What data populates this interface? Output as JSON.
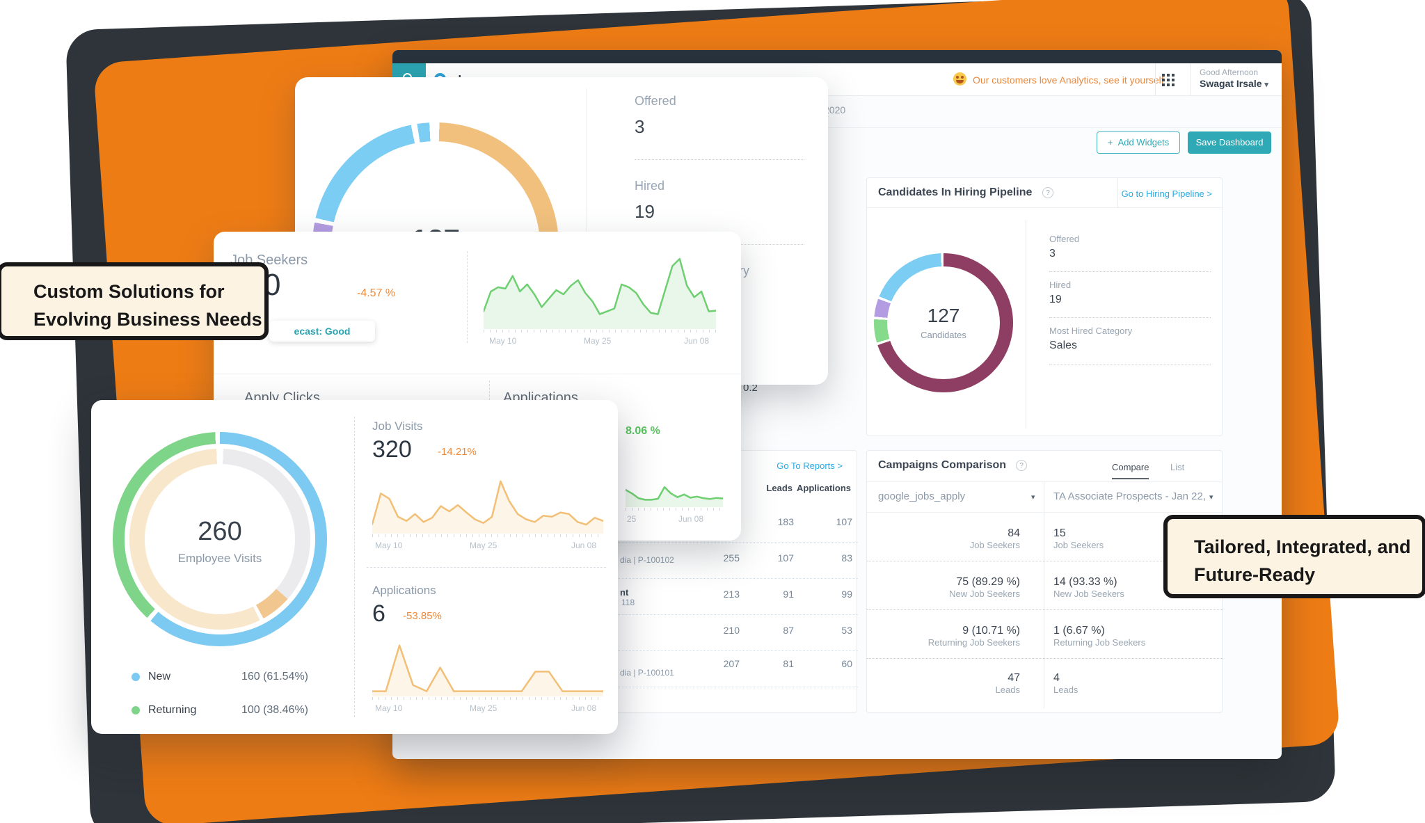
{
  "callouts": {
    "left_line1": "Custom Solutions for",
    "left_line2": "Evolving Business Needs",
    "right_line1": "Tailored, Integrated, and",
    "right_line2": "Future-Ready"
  },
  "colors": {
    "accent_orange": "#ee7c15",
    "teal": "#2fa9b6",
    "link_blue": "#2aa9e1",
    "negative_orange": "#ed8a3c",
    "positive_green": "#58c35e",
    "maroon": "#8d3e62"
  },
  "window": {
    "logo": "phenom",
    "promo": "Our customers love Analytics, see it yourself",
    "greeting": "Good Afternoon",
    "user": "Swagat Irsale",
    "user_caret": "▾",
    "date_fragment": "2020",
    "add_widgets_plus": "+",
    "add_widgets": "Add Widgets",
    "save_dashboard": "Save Dashboard",
    "report_link_fragment": "rt >",
    "stat_fragment": "0.2"
  },
  "hiring": {
    "title": "Candidates In Hiring Pipeline",
    "help_icon": "?",
    "link": "Go to Hiring Pipeline >",
    "donut_value": "127",
    "donut_label": "Candidates",
    "donut_segments": [
      [
        "#8d3e62",
        0,
        69.8
      ],
      [
        "#ffffff",
        69.8,
        70.4
      ],
      [
        "#86da8b",
        70.4,
        75.8
      ],
      [
        "#ffffff",
        75.8,
        76.4
      ],
      [
        "#b39ce1",
        76.4,
        80.6
      ],
      [
        "#ffffff",
        80.6,
        81.2
      ],
      [
        "#7ccdf4",
        81.2,
        99.4
      ],
      [
        "#ffffff",
        99.4,
        100
      ]
    ],
    "stats": [
      {
        "label": "Offered",
        "value": "3"
      },
      {
        "label": "Hired",
        "value": "19"
      },
      {
        "label": "Most Hired Category",
        "value": "Sales"
      }
    ]
  },
  "campaigns": {
    "title": "Campaigns Comparison",
    "help_icon": "?",
    "tab_compare": "Compare",
    "tab_list": "List",
    "select_left": "google_jobs_apply",
    "select_right": "TA Associate Prospects - Jan 22, 2(",
    "select_caret": "▾",
    "rows": [
      {
        "lv": "84",
        "ll": "Job Seekers",
        "rv": "15",
        "rl": "Job Seekers"
      },
      {
        "lv": "75 (89.29 %)",
        "ll": "New Job Seekers",
        "rv": "14 (93.33 %)",
        "rl": "New Job Seekers"
      },
      {
        "lv": "9 (10.71 %)",
        "ll": "Returning Job Seekers",
        "rv": "1 (6.67 %)",
        "rl": "Returning Job Seekers"
      },
      {
        "lv": "47",
        "ll": "Leads",
        "rv": "4",
        "rl": "Leads"
      }
    ]
  },
  "reports": {
    "link": "Go To Reports >",
    "sort_icon": "↓",
    "col_leads": "Leads",
    "col_apps": "Applications",
    "rows": [
      {
        "c1": "",
        "leads": "183",
        "apps": "107",
        "l1": "",
        "l2": ""
      },
      {
        "c1": "255",
        "leads": "107",
        "apps": "83",
        "l1": "",
        "l2": "dia | P-100102"
      },
      {
        "c1": "213",
        "leads": "91",
        "apps": "99",
        "l1": "nt",
        "l2": "118"
      },
      {
        "c1": "210",
        "leads": "87",
        "apps": "53",
        "l1": "",
        "l2": ""
      },
      {
        "c1": "207",
        "leads": "81",
        "apps": "60",
        "l1": "",
        "l2": "dia | P-100101"
      }
    ]
  },
  "pipeline_zoom": {
    "donut_value": "127",
    "donut_segments": [
      [
        "#ffffff",
        0,
        0.5
      ],
      [
        "#f1c07d",
        0.5,
        62
      ],
      [
        "#ffffff",
        62,
        62.6
      ],
      [
        "#86da8b",
        62.6,
        73
      ],
      [
        "#ffffff",
        73,
        73.6
      ],
      [
        "#b39ce1",
        73.6,
        78
      ],
      [
        "#ffffff",
        78,
        78.6
      ],
      [
        "#7ccdf4",
        78.6,
        96.8
      ],
      [
        "#ffffff",
        96.8,
        97.6
      ],
      [
        "#7ccdf4",
        97.6,
        99.2
      ],
      [
        "#ffffff",
        99.2,
        100
      ]
    ],
    "stats": [
      {
        "label": "Offered",
        "value": "3"
      },
      {
        "label": "Hired",
        "value": "19"
      },
      {
        "label": "Most Hired Category",
        "value": ""
      }
    ]
  },
  "job_seekers": {
    "title": "Job Seekers",
    "value_fragment": "0",
    "delta": "-4.57 %",
    "badge": "ecast: Good",
    "x1": "May 10",
    "x2": "May 25",
    "x3": "Jun 08",
    "section_left": "Apply Clicks",
    "section_right": "Applications",
    "apps_delta": "8.06 %",
    "apps_x1": "25",
    "apps_x2": "Jun 08",
    "spark": {
      "color": "#6ecf70",
      "fill": "#e9f7ea",
      "values": [
        22,
        50,
        56,
        54,
        72,
        50,
        60,
        46,
        28,
        40,
        52,
        46,
        58,
        66,
        48,
        36,
        18,
        22,
        26,
        60,
        56,
        48,
        32,
        20,
        18,
        52,
        86,
        96,
        58,
        42,
        50,
        22,
        23
      ]
    },
    "apps_spark": {
      "color": "#6ecf70",
      "fill": "#e9f7ea",
      "values": [
        58,
        44,
        26,
        20,
        20,
        24,
        68,
        44,
        30,
        40,
        28,
        32,
        26,
        23,
        27,
        25
      ]
    }
  },
  "employee": {
    "donut_value": "260",
    "donut_label": "Employee Visits",
    "outer_segments": [
      [
        "#7cc9f1",
        0,
        61.2
      ],
      [
        "#ffffff",
        61.2,
        61.9
      ],
      [
        "#7ed488",
        61.9,
        99.3
      ],
      [
        "#ffffff",
        99.3,
        100
      ]
    ],
    "inner_segments": [
      [
        "#ffffff",
        0,
        0.6
      ],
      [
        "#ebebee",
        0.6,
        36.5
      ],
      [
        "#f2c68f",
        36.5,
        42
      ],
      [
        "#ffffff",
        42,
        42.7
      ],
      [
        "#f8e7ca",
        42.7,
        99.4
      ],
      [
        "#ffffff",
        99.4,
        100
      ]
    ],
    "legend": [
      {
        "color": "#7cc9f1",
        "label": "New",
        "value": "160 (61.54%)"
      },
      {
        "color": "#7ed488",
        "label": "Returning",
        "value": "100 (38.46%)"
      }
    ],
    "job_visits": {
      "title": "Job Visits",
      "value": "320",
      "delta": "-14.21%",
      "x1": "May 10",
      "x2": "May 25",
      "x3": "Jun 08",
      "spark": {
        "color": "#f2bf76",
        "fill": "#fdf5e7",
        "values": [
          14,
          72,
          62,
          28,
          20,
          33,
          18,
          26,
          48,
          38,
          50,
          36,
          23,
          16,
          28,
          95,
          58,
          33,
          23,
          18,
          30,
          28,
          36,
          33,
          18,
          13,
          26,
          20
        ]
      }
    },
    "applications": {
      "title": "Applications",
      "value": "6",
      "delta": "-53.85%",
      "x1": "May 10",
      "x2": "May 25",
      "x3": "Jun 08",
      "spark": {
        "color": "#f2bf76",
        "fill": "#fdf5e7",
        "values": [
          6,
          6,
          95,
          18,
          6,
          52,
          6,
          6,
          6,
          6,
          6,
          6,
          44,
          44,
          6,
          6,
          6,
          6
        ]
      }
    }
  }
}
